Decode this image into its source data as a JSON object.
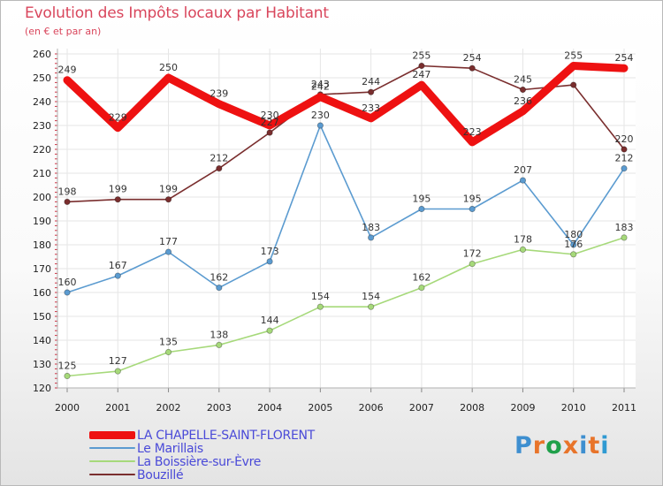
{
  "header": {
    "title": "Evolution des Impôts locaux par Habitant",
    "subtitle": "(en € et par an)"
  },
  "brand": {
    "text": "Proxiti",
    "letter_colors": [
      "#3e8fd0",
      "#e8742a",
      "#1fa04a",
      "#e8742a",
      "#3e8fd0",
      "#e8742a",
      "#2f9ad2"
    ]
  },
  "colors": {
    "title": "#d9465c",
    "axis_text": "#222222",
    "axis_tick": "#cc3344",
    "gridline": "#e5e5e5",
    "legend_text": "#4a4ad8"
  },
  "chart_data": {
    "type": "line",
    "title": "Evolution des Impôts locaux par Habitant",
    "subtitle": "(en € et par an)",
    "xlabel": "",
    "ylabel": "",
    "categories": [
      "2000",
      "2001",
      "2002",
      "2003",
      "2004",
      "2005",
      "2006",
      "2007",
      "2008",
      "2009",
      "2010",
      "2011"
    ],
    "ylim": [
      120,
      260
    ],
    "yticks": [
      120,
      130,
      140,
      150,
      160,
      170,
      180,
      190,
      200,
      210,
      220,
      230,
      240,
      250,
      260
    ],
    "grid": true,
    "legend_position": "bottom-left",
    "series": [
      {
        "name": "LA CHAPELLE-SAINT-FLORENT",
        "color": "#ee1111",
        "weight": "thick",
        "values": [
          249,
          229,
          250,
          239,
          230,
          242,
          233,
          247,
          223,
          236,
          255,
          254
        ],
        "labels": [
          "249",
          "229",
          "250",
          "239",
          "230",
          "242",
          "233",
          "247",
          "223",
          "236",
          "255",
          "254"
        ]
      },
      {
        "name": "Le Marillais",
        "color": "#5b9bd0",
        "weight": "thin",
        "values": [
          160,
          167,
          177,
          162,
          173,
          230,
          183,
          195,
          195,
          207,
          180,
          212
        ],
        "labels": [
          "160",
          "167",
          "177",
          "162",
          "173",
          "230",
          "183",
          "195",
          "195",
          "207",
          "180",
          "212"
        ]
      },
      {
        "name": "La Boissière-sur-Èvre",
        "color": "#a6d97a",
        "weight": "thin",
        "values": [
          125,
          127,
          135,
          138,
          144,
          154,
          154,
          162,
          172,
          178,
          176,
          183
        ],
        "labels": [
          "125",
          "127",
          "135",
          "138",
          "144",
          "154",
          "154",
          "162",
          "172",
          "178",
          "176",
          "183"
        ]
      },
      {
        "name": "Bouzillé",
        "color": "#7a2e2e",
        "weight": "thin",
        "values": [
          198,
          199,
          199,
          212,
          227,
          243,
          244,
          255,
          254,
          245,
          247,
          220
        ],
        "labels": [
          "198",
          "199",
          "199",
          "212",
          "227",
          "243",
          "244",
          "255",
          "254",
          "245",
          "",
          "220"
        ]
      }
    ]
  }
}
